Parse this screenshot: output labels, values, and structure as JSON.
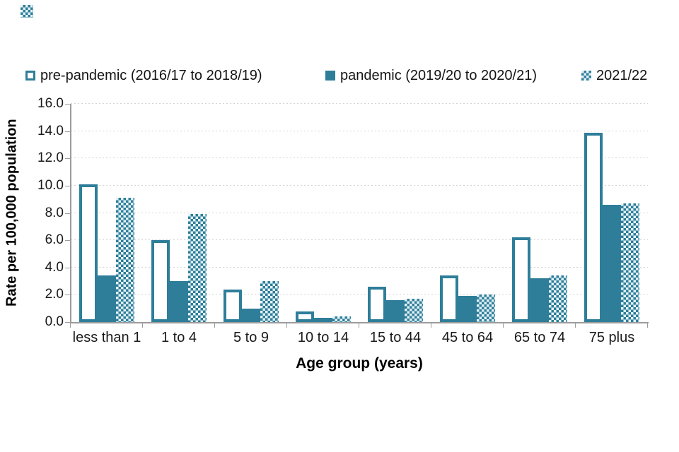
{
  "page": {
    "background": "#ffffff"
  },
  "decor": {
    "corner_swatch": "checkered-square"
  },
  "legend": {
    "items": [
      {
        "label": "pre-pandemic (2016/17 to 2018/19)",
        "swatch": "outlined-square"
      },
      {
        "label": "pandemic (2019/20 to 2020/21)",
        "swatch": "solid-square"
      },
      {
        "label": "2021/22",
        "swatch": "checkered-square"
      }
    ]
  },
  "chart_data": {
    "type": "bar",
    "title": "",
    "xlabel": "Age group (years)",
    "ylabel": "Rate per 100,000 population",
    "ylim": [
      0,
      16
    ],
    "ytick_step": 2,
    "ytick_labels": [
      "0.0",
      "2.0",
      "4.0",
      "6.0",
      "8.0",
      "10.0",
      "12.0",
      "14.0",
      "16.0"
    ],
    "grid": "horizontal-dotted",
    "legend_position": "top",
    "categories": [
      "less than 1",
      "1 to 4",
      "5 to 9",
      "10 to 14",
      "15 to 44",
      "45 to 64",
      "65 to 74",
      "75 plus"
    ],
    "series": [
      {
        "name": "pre-pandemic (2016/17 to 2018/19)",
        "style": "outlined",
        "values": [
          10.1,
          6.0,
          2.4,
          0.8,
          2.6,
          3.4,
          6.2,
          13.9
        ]
      },
      {
        "name": "pandemic (2019/20 to 2020/21)",
        "style": "solid",
        "values": [
          3.4,
          3.0,
          1.0,
          0.3,
          1.6,
          1.9,
          3.2,
          8.6
        ]
      },
      {
        "name": "2021/22",
        "style": "checkered",
        "values": [
          9.1,
          7.9,
          3.0,
          0.4,
          1.7,
          2.0,
          3.4,
          8.7
        ]
      }
    ]
  },
  "colors": {
    "teal": "#2E7E99",
    "checker_light": "#e4f1f6",
    "gridline": "#d4d4d4",
    "axis": "#9c9c9c",
    "text": "#1f1f1f"
  }
}
